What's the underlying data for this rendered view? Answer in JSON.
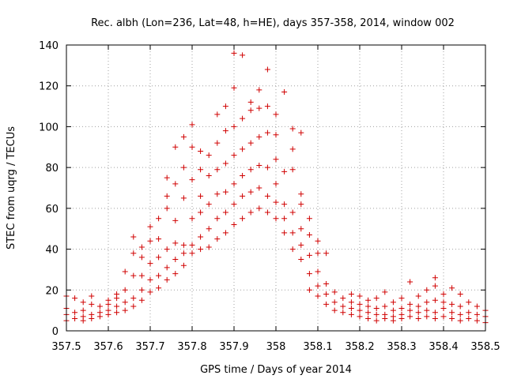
{
  "chart_data": {
    "type": "scatter",
    "title": "Rec. albh (Lon=236, Lat=48, h=HE), days 357-358, 2014, window 002",
    "xlabel": "GPS time / Days of year 2014",
    "ylabel": "STEC from uqrg / TECUs",
    "xlim": [
      357.5,
      358.5
    ],
    "ylim": [
      0,
      140
    ],
    "xticks": [
      "357.5",
      "357.6",
      "357.7",
      "357.8",
      "357.9",
      "358",
      "358.1",
      "358.2",
      "358.3",
      "358.4",
      "358.5"
    ],
    "yticks": [
      "0",
      "20",
      "40",
      "60",
      "80",
      "100",
      "120",
      "140"
    ],
    "grid": true,
    "marker": "plus",
    "colors": {
      "marker": "#d00000"
    },
    "series": [
      {
        "points": [
          [
            357.5,
            5
          ],
          [
            357.5,
            8
          ],
          [
            357.5,
            11
          ],
          [
            357.5,
            17
          ],
          [
            357.52,
            6
          ],
          [
            357.52,
            9
          ],
          [
            357.52,
            16
          ],
          [
            357.54,
            5
          ],
          [
            357.54,
            7
          ],
          [
            357.54,
            10
          ],
          [
            357.54,
            14
          ],
          [
            357.56,
            6
          ],
          [
            357.56,
            8
          ],
          [
            357.56,
            13
          ],
          [
            357.56,
            17
          ],
          [
            357.58,
            7
          ],
          [
            357.58,
            9
          ],
          [
            357.58,
            12
          ],
          [
            357.6,
            8
          ],
          [
            357.6,
            10
          ],
          [
            357.6,
            13
          ],
          [
            357.6,
            15
          ],
          [
            357.62,
            9
          ],
          [
            357.62,
            12
          ],
          [
            357.62,
            16
          ],
          [
            357.62,
            18
          ],
          [
            357.64,
            10
          ],
          [
            357.64,
            14
          ],
          [
            357.64,
            20
          ],
          [
            357.64,
            29
          ],
          [
            357.66,
            12
          ],
          [
            357.66,
            16
          ],
          [
            357.66,
            27
          ],
          [
            357.66,
            38
          ],
          [
            357.66,
            46
          ],
          [
            357.68,
            15
          ],
          [
            357.68,
            20
          ],
          [
            357.68,
            27
          ],
          [
            357.68,
            36
          ],
          [
            357.68,
            41
          ],
          [
            357.7,
            19
          ],
          [
            357.7,
            25
          ],
          [
            357.7,
            33
          ],
          [
            357.7,
            44
          ],
          [
            357.7,
            51
          ],
          [
            357.72,
            21
          ],
          [
            357.72,
            27
          ],
          [
            357.72,
            36
          ],
          [
            357.72,
            45
          ],
          [
            357.72,
            55
          ],
          [
            357.74,
            25
          ],
          [
            357.74,
            31
          ],
          [
            357.74,
            40
          ],
          [
            357.74,
            60
          ],
          [
            357.74,
            66
          ],
          [
            357.74,
            75
          ],
          [
            357.76,
            28
          ],
          [
            357.76,
            35
          ],
          [
            357.76,
            43
          ],
          [
            357.76,
            54
          ],
          [
            357.76,
            72
          ],
          [
            357.76,
            90
          ],
          [
            357.78,
            32
          ],
          [
            357.78,
            38
          ],
          [
            357.78,
            42
          ],
          [
            357.78,
            65
          ],
          [
            357.78,
            80
          ],
          [
            357.78,
            95
          ],
          [
            357.8,
            38
          ],
          [
            357.8,
            42
          ],
          [
            357.8,
            55
          ],
          [
            357.8,
            74
          ],
          [
            357.8,
            90
          ],
          [
            357.8,
            101
          ],
          [
            357.82,
            40
          ],
          [
            357.82,
            46
          ],
          [
            357.82,
            58
          ],
          [
            357.82,
            66
          ],
          [
            357.82,
            79
          ],
          [
            357.82,
            88
          ],
          [
            357.84,
            41
          ],
          [
            357.84,
            50
          ],
          [
            357.84,
            62
          ],
          [
            357.84,
            76
          ],
          [
            357.84,
            86
          ],
          [
            357.86,
            45
          ],
          [
            357.86,
            55
          ],
          [
            357.86,
            67
          ],
          [
            357.86,
            79
          ],
          [
            357.86,
            92
          ],
          [
            357.86,
            106
          ],
          [
            357.88,
            48
          ],
          [
            357.88,
            58
          ],
          [
            357.88,
            68
          ],
          [
            357.88,
            82
          ],
          [
            357.88,
            98
          ],
          [
            357.88,
            110
          ],
          [
            357.9,
            52
          ],
          [
            357.9,
            62
          ],
          [
            357.9,
            72
          ],
          [
            357.9,
            86
          ],
          [
            357.9,
            100
          ],
          [
            357.9,
            119
          ],
          [
            357.9,
            136
          ],
          [
            357.92,
            55
          ],
          [
            357.92,
            66
          ],
          [
            357.92,
            76
          ],
          [
            357.92,
            89
          ],
          [
            357.92,
            104
          ],
          [
            357.92,
            135
          ],
          [
            357.94,
            58
          ],
          [
            357.94,
            68
          ],
          [
            357.94,
            79
          ],
          [
            357.94,
            92
          ],
          [
            357.94,
            108
          ],
          [
            357.94,
            112
          ],
          [
            357.96,
            60
          ],
          [
            357.96,
            70
          ],
          [
            357.96,
            81
          ],
          [
            357.96,
            95
          ],
          [
            357.96,
            109
          ],
          [
            357.96,
            118
          ],
          [
            357.98,
            58
          ],
          [
            357.98,
            66
          ],
          [
            357.98,
            80
          ],
          [
            357.98,
            97
          ],
          [
            357.98,
            110
          ],
          [
            357.98,
            128
          ],
          [
            358.0,
            55
          ],
          [
            358.0,
            63
          ],
          [
            358.0,
            72
          ],
          [
            358.0,
            84
          ],
          [
            358.0,
            96
          ],
          [
            358.0,
            106
          ],
          [
            358.02,
            48
          ],
          [
            358.02,
            55
          ],
          [
            358.02,
            62
          ],
          [
            358.02,
            78
          ],
          [
            358.02,
            117
          ],
          [
            358.04,
            40
          ],
          [
            358.04,
            48
          ],
          [
            358.04,
            58
          ],
          [
            358.04,
            79
          ],
          [
            358.04,
            89
          ],
          [
            358.04,
            99
          ],
          [
            358.06,
            35
          ],
          [
            358.06,
            42
          ],
          [
            358.06,
            50
          ],
          [
            358.06,
            62
          ],
          [
            358.06,
            67
          ],
          [
            358.06,
            97
          ],
          [
            358.08,
            20
          ],
          [
            358.08,
            28
          ],
          [
            358.08,
            37
          ],
          [
            358.08,
            47
          ],
          [
            358.08,
            55
          ],
          [
            358.1,
            17
          ],
          [
            358.1,
            22
          ],
          [
            358.1,
            29
          ],
          [
            358.1,
            38
          ],
          [
            358.1,
            44
          ],
          [
            358.12,
            13
          ],
          [
            358.12,
            18
          ],
          [
            358.12,
            23
          ],
          [
            358.12,
            38
          ],
          [
            358.14,
            10
          ],
          [
            358.14,
            14
          ],
          [
            358.14,
            19
          ],
          [
            358.16,
            9
          ],
          [
            358.16,
            12
          ],
          [
            358.16,
            16
          ],
          [
            358.18,
            8
          ],
          [
            358.18,
            11
          ],
          [
            358.18,
            14
          ],
          [
            358.18,
            18
          ],
          [
            358.2,
            7
          ],
          [
            358.2,
            10
          ],
          [
            358.2,
            13
          ],
          [
            358.2,
            17
          ],
          [
            358.22,
            6
          ],
          [
            358.22,
            9
          ],
          [
            358.22,
            12
          ],
          [
            358.22,
            15
          ],
          [
            358.24,
            5
          ],
          [
            358.24,
            8
          ],
          [
            358.24,
            11
          ],
          [
            358.24,
            16
          ],
          [
            358.26,
            6
          ],
          [
            358.26,
            8
          ],
          [
            358.26,
            12
          ],
          [
            358.26,
            19
          ],
          [
            358.28,
            5
          ],
          [
            358.28,
            7
          ],
          [
            358.28,
            10
          ],
          [
            358.28,
            14
          ],
          [
            358.3,
            6
          ],
          [
            358.3,
            8
          ],
          [
            358.3,
            11
          ],
          [
            358.3,
            16
          ],
          [
            358.32,
            7
          ],
          [
            358.32,
            10
          ],
          [
            358.32,
            13
          ],
          [
            358.32,
            24
          ],
          [
            358.34,
            6
          ],
          [
            358.34,
            9
          ],
          [
            358.34,
            12
          ],
          [
            358.34,
            17
          ],
          [
            358.36,
            7
          ],
          [
            358.36,
            10
          ],
          [
            358.36,
            14
          ],
          [
            358.36,
            20
          ],
          [
            358.38,
            6
          ],
          [
            358.38,
            9
          ],
          [
            358.38,
            15
          ],
          [
            358.38,
            22
          ],
          [
            358.38,
            26
          ],
          [
            358.4,
            7
          ],
          [
            358.4,
            11
          ],
          [
            358.4,
            14
          ],
          [
            358.4,
            18
          ],
          [
            358.42,
            6
          ],
          [
            358.42,
            9
          ],
          [
            358.42,
            13
          ],
          [
            358.42,
            21
          ],
          [
            358.44,
            5
          ],
          [
            358.44,
            8
          ],
          [
            358.44,
            12
          ],
          [
            358.44,
            18
          ],
          [
            358.46,
            6
          ],
          [
            358.46,
            9
          ],
          [
            358.46,
            14
          ],
          [
            358.48,
            5
          ],
          [
            358.48,
            8
          ],
          [
            358.48,
            12
          ],
          [
            358.5,
            4
          ],
          [
            358.5,
            7
          ],
          [
            358.5,
            10
          ]
        ]
      }
    ]
  }
}
